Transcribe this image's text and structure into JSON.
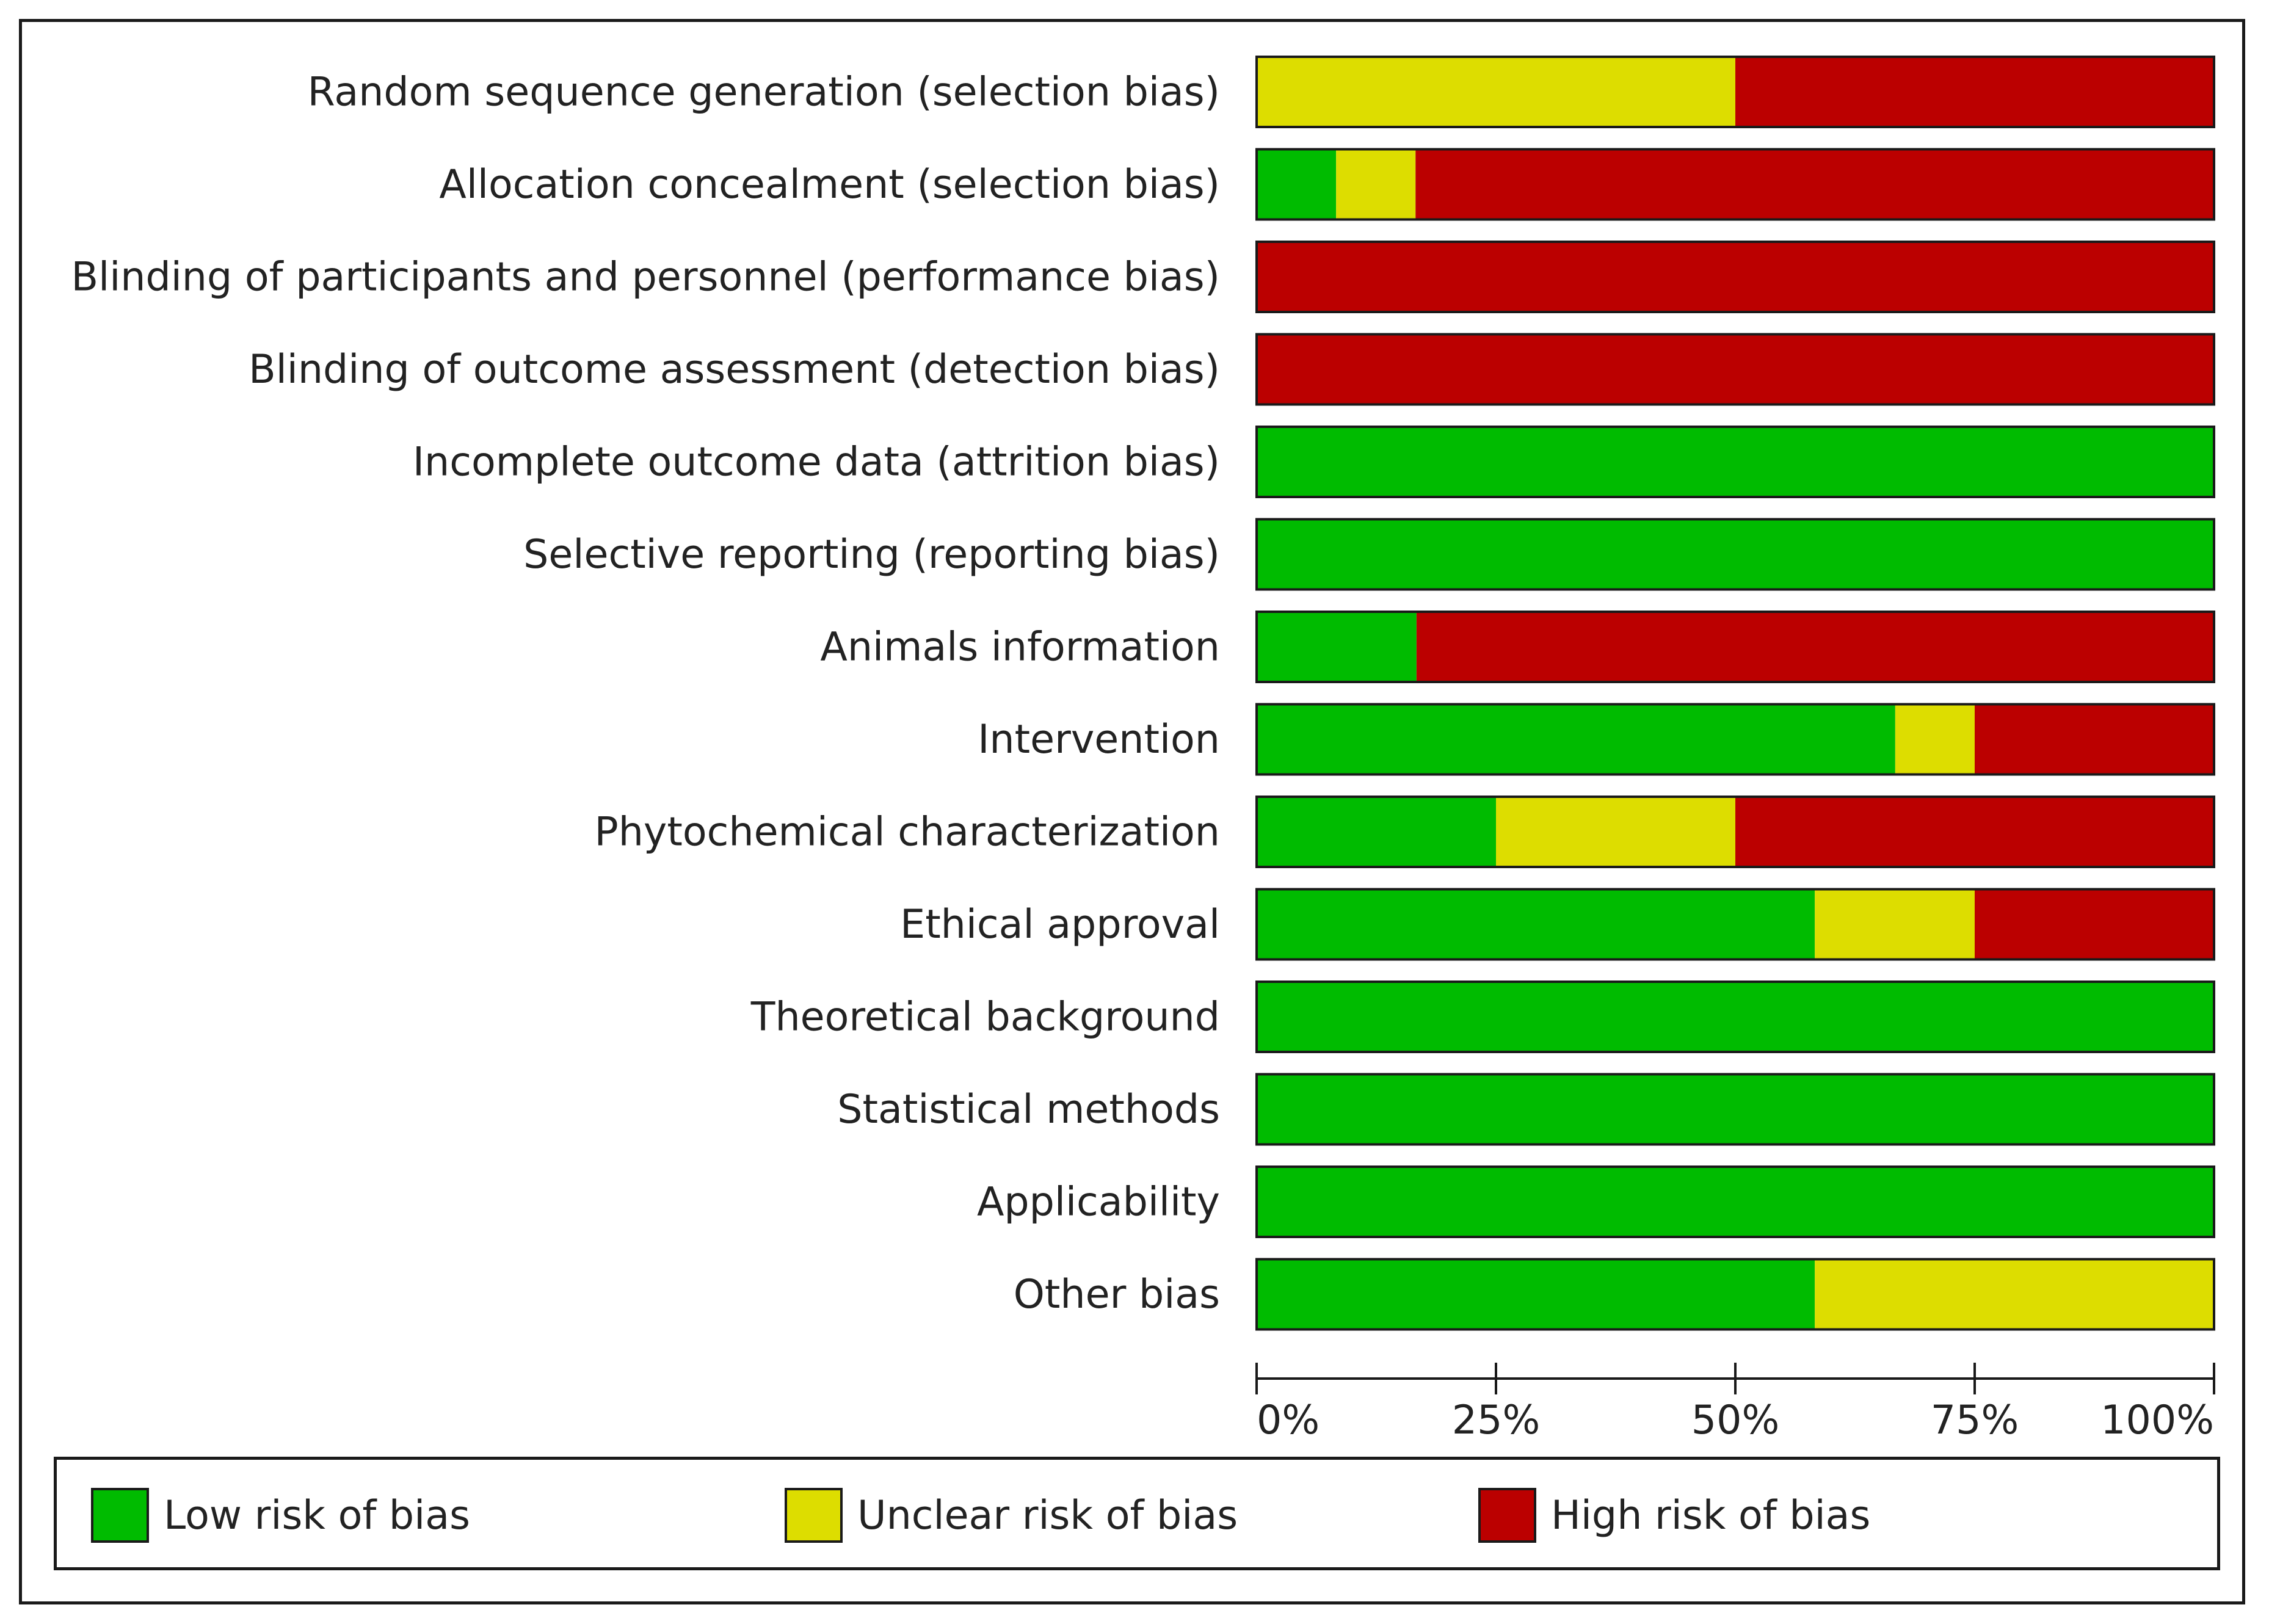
{
  "chart_data": {
    "type": "bar",
    "orientation": "horizontal",
    "stacked": true,
    "categories": [
      "Random sequence generation (selection bias)",
      "Allocation concealment (selection bias)",
      "Blinding of participants and personnel (performance bias)",
      "Blinding of outcome assessment (detection bias)",
      "Incomplete outcome data (attrition bias)",
      "Selective reporting (reporting bias)",
      "Animals information",
      "Intervention",
      "Phytochemical characterization",
      "Ethical approval",
      "Theoretical background",
      "Statistical methods",
      "Applicability",
      "Other bias"
    ],
    "series": [
      {
        "name": "Low risk of bias",
        "color": "#00bb00",
        "values": [
          0,
          8.3,
          0,
          0,
          100,
          100,
          16.7,
          66.7,
          25,
          58.3,
          100,
          100,
          100,
          58.3
        ]
      },
      {
        "name": "Unclear risk of bias",
        "color": "#dddd00",
        "values": [
          50,
          8.3,
          0,
          0,
          0,
          0,
          0,
          8.3,
          25,
          16.7,
          0,
          0,
          0,
          41.7
        ]
      },
      {
        "name": "High risk of bias",
        "color": "#bb0000",
        "values": [
          50,
          83.4,
          100,
          100,
          0,
          0,
          83.3,
          25,
          50,
          25,
          0,
          0,
          0,
          0
        ]
      }
    ],
    "xlim": [
      0,
      100
    ],
    "x_ticks": [
      "0%",
      "25%",
      "50%",
      "75%",
      "100%"
    ],
    "legend_position": "bottom"
  },
  "legend": {
    "items": [
      {
        "label": "Low risk of bias",
        "color": "#00bb00"
      },
      {
        "label": "Unclear risk of bias",
        "color": "#dddd00"
      },
      {
        "label": "High risk of bias",
        "color": "#bb0000"
      }
    ]
  }
}
